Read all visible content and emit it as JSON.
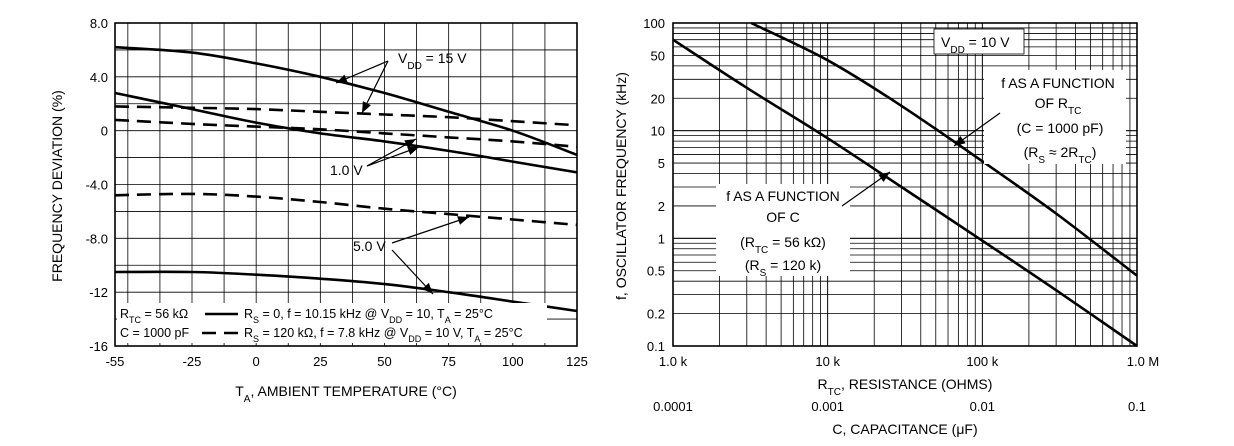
{
  "chart_data": [
    {
      "type": "line",
      "xlabel": "T<sub>A</sub>, AMBIENT TEMPERATURE (°C)",
      "xlabel_plain": "TA, AMBIENT TEMPERATURE (°C)",
      "ylabel": "FREQUENCY DEVIATION (%)",
      "xlim": [
        -55,
        125
      ],
      "ylim": [
        -16,
        8
      ],
      "x_ticks": [
        "-55",
        "-25",
        "0",
        "25",
        "50",
        "75",
        "100",
        "125"
      ],
      "y_ticks": [
        "8.0",
        "4.0",
        "0",
        "-4.0",
        "-8.0",
        "-12",
        "-16"
      ],
      "grid": true,
      "series": [
        {
          "name": "VDD = 15 V",
          "style": "solid",
          "x": [
            -55,
            -25,
            0,
            25,
            50,
            75,
            100,
            125
          ],
          "y": [
            6.2,
            5.8,
            5.0,
            4.0,
            2.8,
            1.4,
            0.0,
            -1.8
          ]
        },
        {
          "name": "VDD = 15 V",
          "style": "dashed",
          "x": [
            -55,
            -25,
            0,
            25,
            50,
            75,
            100,
            125
          ],
          "y": [
            1.8,
            1.7,
            1.6,
            1.4,
            1.2,
            1.0,
            0.7,
            0.4
          ]
        },
        {
          "name": "VDD = 1.0 V",
          "style": "solid",
          "x": [
            -55,
            -25,
            0,
            25,
            50,
            75,
            100,
            125
          ],
          "y": [
            2.8,
            1.6,
            0.6,
            -0.2,
            -0.8,
            -1.5,
            -2.3,
            -3.1
          ]
        },
        {
          "name": "VDD = 1.0 V",
          "style": "dashed",
          "x": [
            -55,
            -25,
            0,
            25,
            50,
            75,
            100,
            125
          ],
          "y": [
            0.8,
            0.5,
            0.3,
            0.1,
            -0.2,
            -0.5,
            -0.8,
            -1.2
          ]
        },
        {
          "name": "VDD = 5.0 V",
          "style": "dashed",
          "x": [
            -55,
            -25,
            0,
            25,
            50,
            75,
            100,
            125
          ],
          "y": [
            -4.8,
            -4.7,
            -4.9,
            -5.3,
            -5.8,
            -6.2,
            -6.6,
            -7.0
          ]
        },
        {
          "name": "VDD = 5.0 V",
          "style": "solid",
          "x": [
            -55,
            -25,
            0,
            25,
            50,
            75,
            100,
            125
          ],
          "y": [
            -10.5,
            -10.5,
            -10.7,
            -11.0,
            -11.4,
            -12.0,
            -12.7,
            -13.4
          ]
        }
      ],
      "annotations": {
        "vdd15": "V<tspan baseline-shift='sub' font-size='10'>DD</tspan> = 15 V",
        "vdd1": "1.0 V",
        "vdd5": "5.0 V"
      },
      "legend": {
        "line1": "R<tspan baseline-shift='sub' font-size='9'>TC</tspan> = 56 kΩ",
        "line2": "C = 1000 pF",
        "solid_label": "R<tspan baseline-shift='sub' font-size='9'>S</tspan> = 0, f = 10.15 kHz @ V<tspan baseline-shift='sub' font-size='9'>DD</tspan> = 10, T<tspan baseline-shift='sub' font-size='9'>A</tspan> = 25°C",
        "dash_label": "R<tspan baseline-shift='sub' font-size='9'>S</tspan> = 120 kΩ, f = 7.8 kHz @ V<tspan baseline-shift='sub' font-size='9'>DD</tspan> = 10 V, T<tspan baseline-shift='sub' font-size='9'>A</tspan> = 25°C"
      }
    },
    {
      "type": "line",
      "log_x": true,
      "log_y": true,
      "xlabel": "R<tspan baseline-shift='sub' font-size='10'>TC</tspan>, RESISTANCE (OHMS)",
      "xlabel2": "C, CAPACITANCE (μF)",
      "ylabel": "f, OSCILLATOR FREQUENCY (kHz)",
      "xlim": [
        1000,
        1000000
      ],
      "ylim": [
        0.1,
        100
      ],
      "x_ticks": [
        "1.0 k",
        "10 k",
        "100 k",
        "1.0 M"
      ],
      "x_ticks2": [
        "0.0001",
        "0.001",
        "0.01",
        "0.1"
      ],
      "y_ticks": [
        "100",
        "50",
        "20",
        "10",
        "5",
        "2",
        "1",
        "0.5",
        "0.2",
        "0.1"
      ],
      "grid": true,
      "series": [
        {
          "name": "f AS A FUNCTION OF RTC (C = 1000 pF) (RS ≈ 2RTC)",
          "x": [
            3200,
            10000,
            30000,
            100000,
            300000,
            1000000
          ],
          "y": [
            100,
            45,
            17,
            5.2,
            1.7,
            0.45
          ]
        },
        {
          "name": "f AS A FUNCTION OF C (RTC = 56 kΩ) (RS = 120 k)",
          "x": [
            1000,
            3000,
            10000,
            30000,
            100000,
            300000,
            1000000
          ],
          "y": [
            70,
            25,
            8.5,
            3.0,
            0.95,
            0.33,
            0.1
          ]
        }
      ],
      "annotations": {
        "vdd": "V<tspan baseline-shift='sub' font-size='10'>DD</tspan> = 10 V",
        "rtc_l1": "f AS A FUNCTION",
        "rtc_l2": "OF R<tspan baseline-shift='sub' font-size='10'>TC</tspan>",
        "rtc_l3": "(C = 1000 pF)",
        "rtc_l4": "(R<tspan baseline-shift='sub' font-size='10'>S</tspan> ≈ 2R<tspan baseline-shift='sub' font-size='10'>TC</tspan>)",
        "c_l1": "f AS A FUNCTION",
        "c_l2": "OF C",
        "c_l3": "(R<tspan baseline-shift='sub' font-size='10'>TC</tspan> = 56 kΩ)",
        "c_l4": "(R<tspan baseline-shift='sub' font-size='10'>S</tspan> = 120 k)"
      }
    }
  ]
}
